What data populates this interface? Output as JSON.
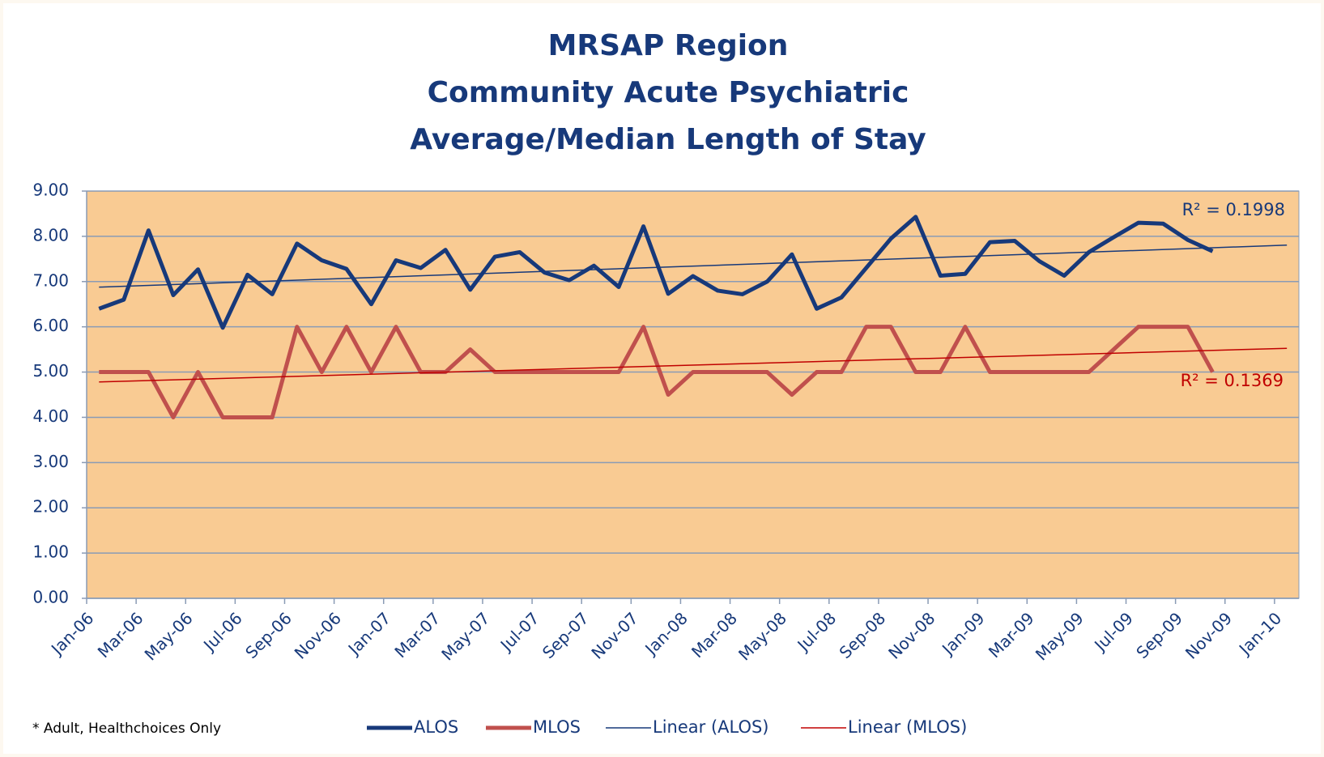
{
  "chart_data": {
    "type": "line",
    "title": [
      "MRSAP Region",
      "Community Acute Psychiatric",
      "Average/Median Length of Stay"
    ],
    "categories": [
      "Jan-06",
      null,
      "Mar-06",
      null,
      "May-06",
      null,
      "Jul-06",
      null,
      "Sep-06",
      null,
      "Nov-06",
      null,
      "Jan-07",
      null,
      "Mar-07",
      null,
      "May-07",
      null,
      "Jul-07",
      null,
      "Sep-07",
      null,
      "Nov-07",
      null,
      "Jan-08",
      null,
      "Mar-08",
      null,
      "May-08",
      null,
      "Jul-08",
      null,
      "Sep-08",
      null,
      "Nov-08",
      null,
      "Jan-09",
      null,
      "Mar-09",
      null,
      "May-09",
      null,
      "Jul-09",
      null,
      "Sep-09",
      null,
      "Nov-09",
      null,
      "Jan-10"
    ],
    "series": [
      {
        "name": "ALOS",
        "color": "#17397a",
        "width": 5,
        "values": [
          6.4,
          6.6,
          8.13,
          6.7,
          7.27,
          5.98,
          7.15,
          6.72,
          7.84,
          7.47,
          7.28,
          6.5,
          7.47,
          7.3,
          7.7,
          6.82,
          7.55,
          7.65,
          7.2,
          7.03,
          7.35,
          6.88,
          8.22,
          6.73,
          7.12,
          6.8,
          6.72,
          7.0,
          7.6,
          6.4,
          6.65,
          7.3,
          7.95,
          8.43,
          7.13,
          7.17,
          7.87,
          7.9,
          7.45,
          7.13,
          7.65,
          7.98,
          8.3,
          8.28,
          7.92,
          7.67,
          null,
          null,
          null
        ]
      },
      {
        "name": "MLOS",
        "color": "#c0504d",
        "width": 5,
        "values": [
          5,
          5,
          5,
          4,
          5,
          4,
          4,
          4,
          6,
          5,
          6,
          5,
          6,
          5,
          5,
          5.5,
          5,
          5,
          5,
          5,
          5,
          5,
          6,
          4.5,
          5,
          5,
          5,
          5,
          4.5,
          5,
          5,
          6,
          6,
          5,
          5,
          6,
          5,
          5,
          5,
          5,
          5,
          5.5,
          6,
          6,
          6,
          5,
          null,
          null,
          null
        ]
      },
      {
        "name": "Linear (ALOS)",
        "color": "#17397a",
        "width": 1.5,
        "trend_of": 0
      },
      {
        "name": "Linear (MLOS)",
        "color": "#c00000",
        "width": 1.5,
        "trend_of": 1
      }
    ],
    "annotations": [
      {
        "text": "R² = 0.1998",
        "series": 2
      },
      {
        "text": "R² = 0.1369",
        "series": 3
      }
    ],
    "footnote": "* Adult, Healthchoices Only",
    "ylim": [
      0,
      9
    ],
    "yticks": [
      {
        "value": 0,
        "label": "0.00"
      },
      {
        "value": 1,
        "label": "1.00"
      },
      {
        "value": 2,
        "label": "2.00"
      },
      {
        "value": 3,
        "label": "3.00"
      },
      {
        "value": 4,
        "label": "4.00"
      },
      {
        "value": 5,
        "label": "5.00"
      },
      {
        "value": 6,
        "label": "6.00"
      },
      {
        "value": 7,
        "label": "7.00"
      },
      {
        "value": 8,
        "label": "8.00"
      },
      {
        "value": 9,
        "label": "9.00"
      }
    ],
    "grid": true,
    "plot_color": "#f9cb93",
    "legend": "bottom"
  }
}
